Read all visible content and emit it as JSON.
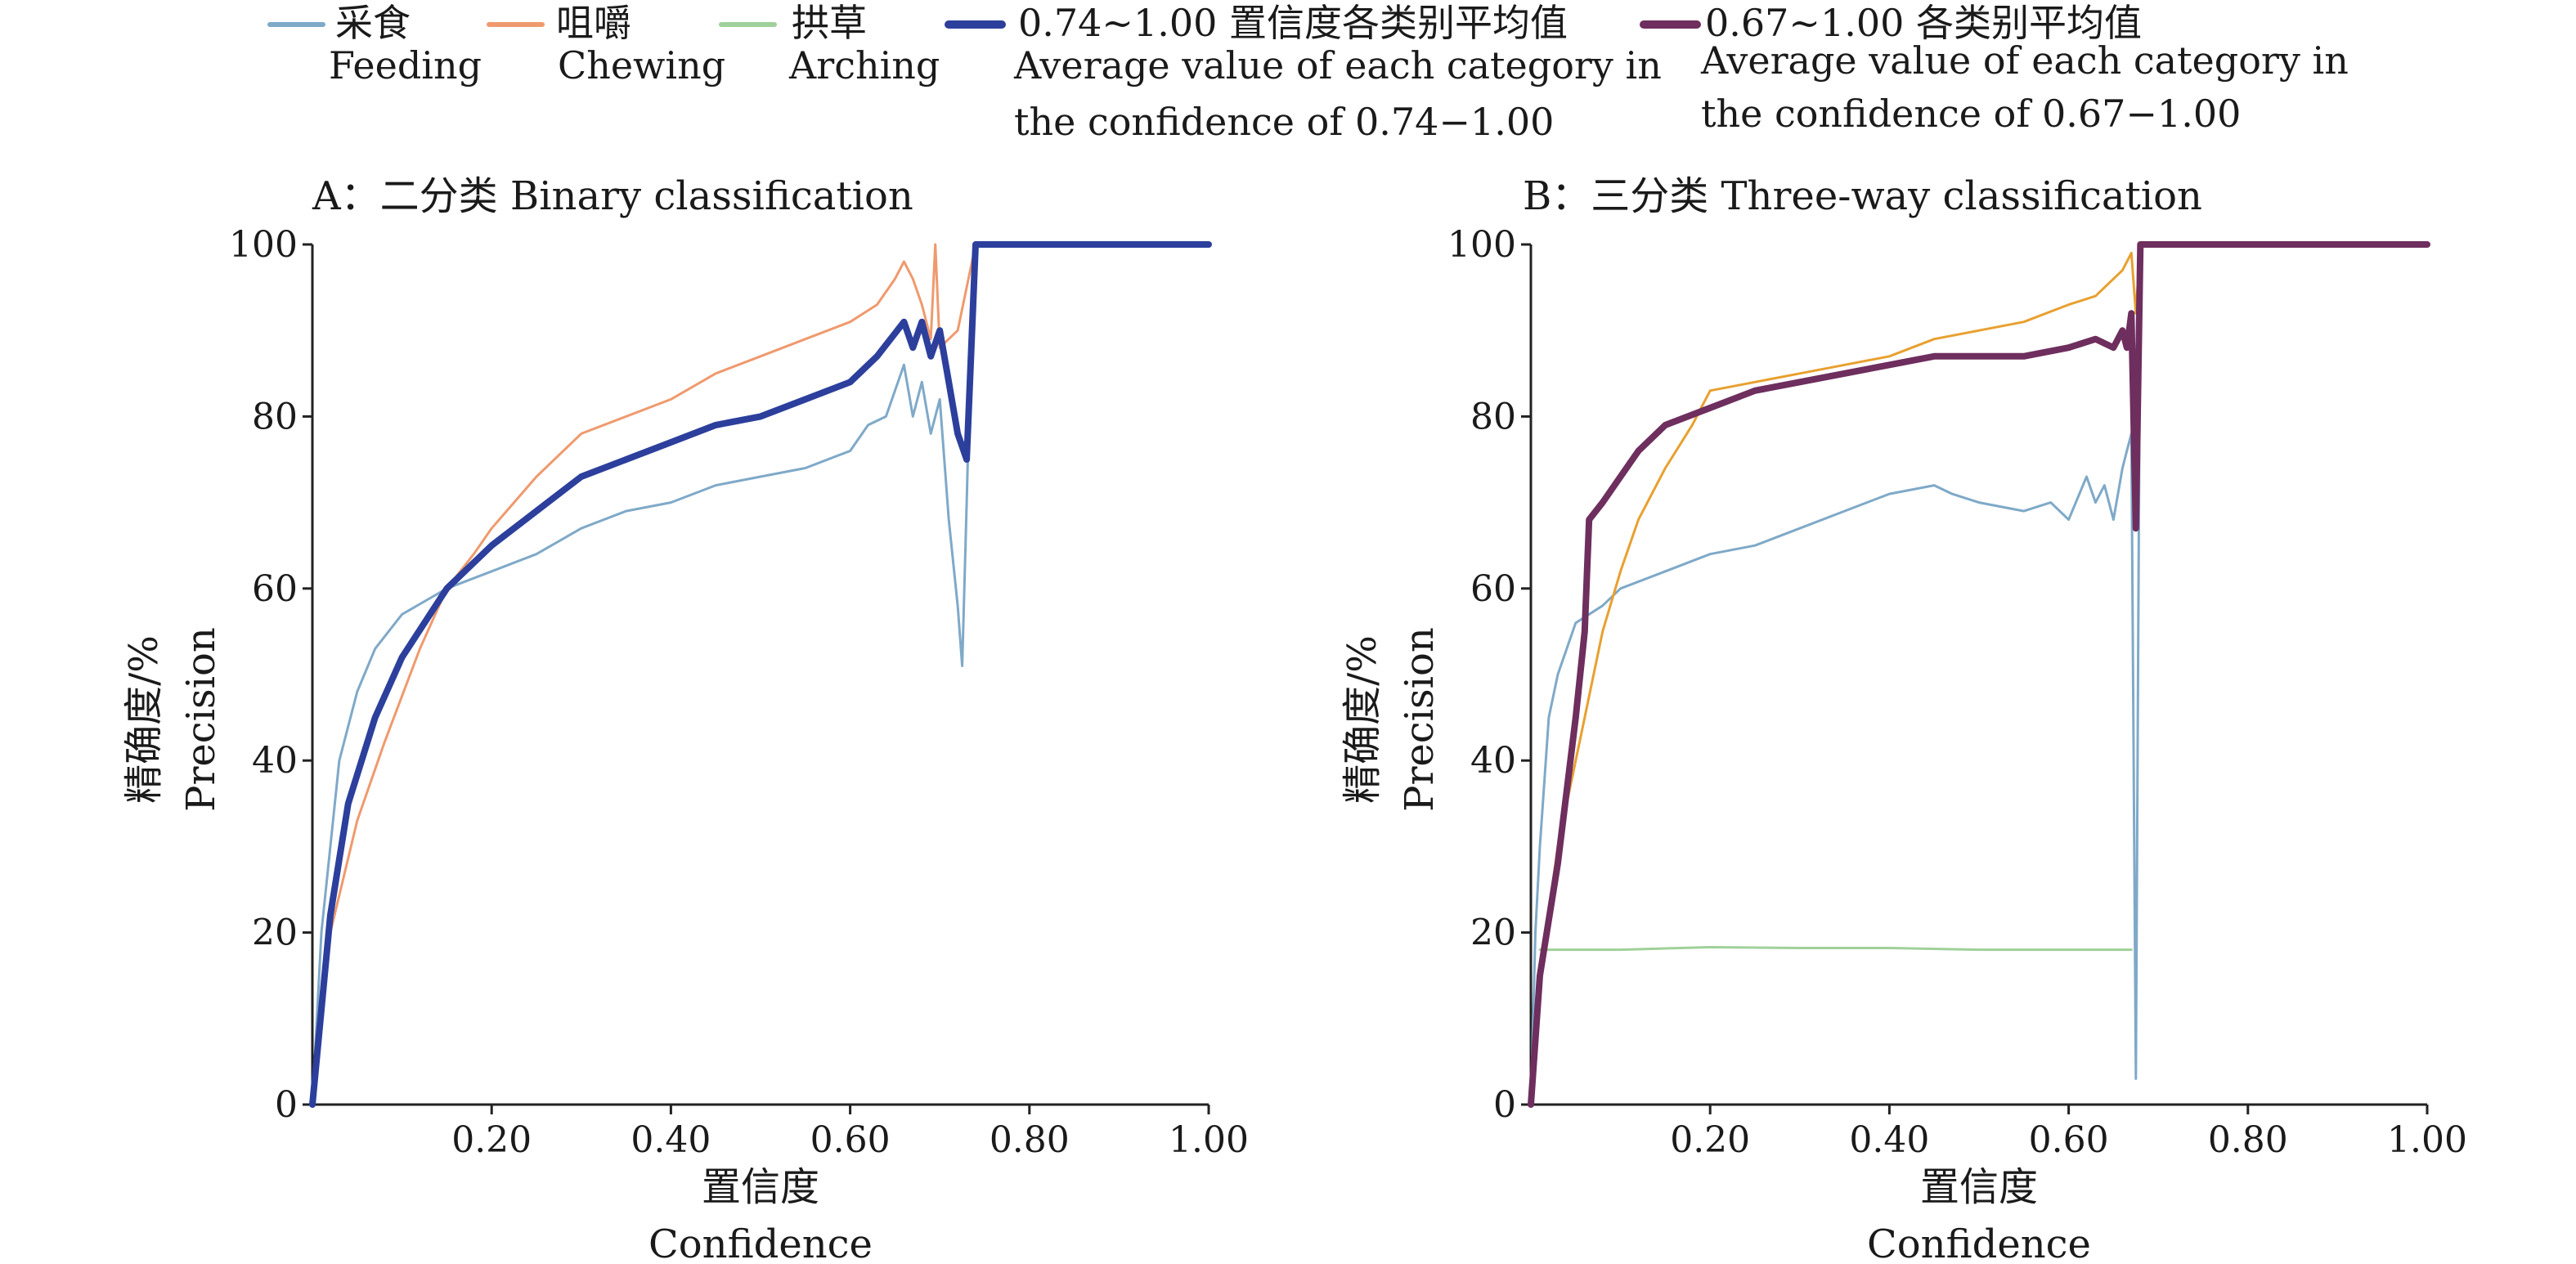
{
  "legend": [
    {
      "key": "feeding",
      "cn": "采食",
      "en": [
        "Feeding"
      ],
      "color": "#7fa9c8",
      "width": "thin"
    },
    {
      "key": "chewing",
      "cn": "咀嚼",
      "en": [
        "Chewing"
      ],
      "color": "#ef9a6e",
      "width": "thin"
    },
    {
      "key": "arching",
      "cn": "拱草",
      "en": [
        "Arching"
      ],
      "color": "#9fd19a",
      "width": "thin"
    },
    {
      "key": "avg_a",
      "cn": "0.74~1.00 置信度各类别平均值",
      "en": [
        "Average value of each category in",
        "the confidence of 0.74−1.00"
      ],
      "color": "#2c3f9c",
      "width": "thick"
    },
    {
      "key": "avg_b",
      "cn": "0.67~1.00 各类别平均值",
      "en": [
        "Average value of each category in",
        "the confidence of 0.67−1.00"
      ],
      "color": "#6e2e5e",
      "width": "thick"
    }
  ],
  "chart_data": [
    {
      "type": "line",
      "title": "A：二分类 Binary classification",
      "xlabel_cn": "置信度",
      "xlabel_en": "Confidence",
      "ylabel_cn": "精确度/%",
      "ylabel_en": "Precision",
      "xlim": [
        0,
        1.0
      ],
      "ylim": [
        0,
        100
      ],
      "xticks": [
        "0.20",
        "0.40",
        "0.60",
        "0.80",
        "1.00"
      ],
      "yticks": [
        "0",
        "20",
        "40",
        "60",
        "80",
        "100"
      ],
      "grid": false,
      "series": [
        {
          "name": "采食 Feeding",
          "color": "#7fa9c8",
          "width": 3,
          "x": [
            0,
            0.01,
            0.03,
            0.05,
            0.07,
            0.1,
            0.15,
            0.2,
            0.25,
            0.3,
            0.35,
            0.4,
            0.45,
            0.5,
            0.55,
            0.6,
            0.62,
            0.64,
            0.66,
            0.67,
            0.68,
            0.69,
            0.7,
            0.71,
            0.72,
            0.725,
            0.73,
            0.735,
            0.74,
            1.0
          ],
          "y": [
            0,
            20,
            40,
            48,
            53,
            57,
            60,
            62,
            64,
            67,
            69,
            70,
            72,
            73,
            74,
            76,
            79,
            80,
            86,
            80,
            84,
            78,
            82,
            68,
            58,
            51,
            70,
            90,
            100,
            100
          ]
        },
        {
          "name": "咀嚼 Chewing",
          "color": "#ef9a6e",
          "width": 3,
          "x": [
            0,
            0.02,
            0.05,
            0.08,
            0.12,
            0.15,
            0.18,
            0.2,
            0.25,
            0.3,
            0.35,
            0.4,
            0.45,
            0.5,
            0.55,
            0.6,
            0.63,
            0.65,
            0.66,
            0.67,
            0.68,
            0.69,
            0.695,
            0.7,
            0.72,
            0.74,
            1.0
          ],
          "y": [
            0,
            20,
            33,
            42,
            53,
            60,
            64,
            67,
            73,
            78,
            80,
            82,
            85,
            87,
            89,
            91,
            93,
            96,
            98,
            96,
            93,
            89,
            100,
            88,
            90,
            100,
            100
          ]
        },
        {
          "name": "0.74~1.00 置信度各类别平均值",
          "color": "#2c3f9c",
          "width": 8,
          "x": [
            0,
            0.02,
            0.04,
            0.07,
            0.1,
            0.15,
            0.2,
            0.25,
            0.3,
            0.35,
            0.4,
            0.45,
            0.5,
            0.55,
            0.6,
            0.63,
            0.66,
            0.67,
            0.68,
            0.69,
            0.7,
            0.71,
            0.72,
            0.73,
            0.74,
            1.0
          ],
          "y": [
            0,
            22,
            35,
            45,
            52,
            60,
            65,
            69,
            73,
            75,
            77,
            79,
            80,
            82,
            84,
            87,
            91,
            88,
            91,
            87,
            90,
            84,
            78,
            75,
            100,
            100
          ]
        }
      ]
    },
    {
      "type": "line",
      "title": "B：三分类 Three-way classification",
      "xlabel_cn": "置信度",
      "xlabel_en": "Confidence",
      "ylabel_cn": "精确度/%",
      "ylabel_en": "Precision",
      "xlim": [
        0,
        1.0
      ],
      "ylim": [
        0,
        100
      ],
      "xticks": [
        "0.20",
        "0.40",
        "0.60",
        "0.80",
        "1.00"
      ],
      "yticks": [
        "0",
        "20",
        "40",
        "60",
        "80",
        "100"
      ],
      "grid": false,
      "series": [
        {
          "name": "采食 Feeding",
          "color": "#7fa9c8",
          "width": 3,
          "x": [
            0,
            0.005,
            0.01,
            0.02,
            0.03,
            0.05,
            0.08,
            0.1,
            0.15,
            0.2,
            0.25,
            0.3,
            0.35,
            0.4,
            0.45,
            0.47,
            0.5,
            0.55,
            0.58,
            0.6,
            0.62,
            0.63,
            0.64,
            0.65,
            0.66,
            0.665,
            0.67,
            0.675,
            0.68,
            1.0
          ],
          "y": [
            0,
            20,
            30,
            45,
            50,
            56,
            58,
            60,
            62,
            64,
            65,
            67,
            69,
            71,
            72,
            71,
            70,
            69,
            70,
            68,
            73,
            70,
            72,
            68,
            74,
            76,
            78,
            3,
            100,
            100
          ]
        },
        {
          "name": "咀嚼 Chewing",
          "color": "#e8a030",
          "width": 3,
          "x": [
            0,
            0.01,
            0.03,
            0.06,
            0.08,
            0.1,
            0.12,
            0.15,
            0.18,
            0.2,
            0.25,
            0.3,
            0.35,
            0.4,
            0.45,
            0.5,
            0.55,
            0.6,
            0.63,
            0.65,
            0.66,
            0.67,
            0.675,
            0.68,
            1.0
          ],
          "y": [
            0,
            15,
            30,
            45,
            55,
            62,
            68,
            74,
            79,
            83,
            84,
            85,
            86,
            87,
            89,
            90,
            91,
            93,
            94,
            96,
            97,
            99,
            92,
            100,
            100
          ]
        },
        {
          "name": "拱草 Arching",
          "color": "#9fd19a",
          "width": 3,
          "x": [
            0.01,
            0.1,
            0.2,
            0.3,
            0.4,
            0.5,
            0.6,
            0.67
          ],
          "y": [
            18,
            18,
            18.3,
            18.2,
            18.2,
            18,
            18,
            18
          ]
        },
        {
          "name": "0.67~1.00 各类别平均值",
          "color": "#6e2e5e",
          "width": 8,
          "x": [
            0,
            0.01,
            0.03,
            0.05,
            0.06,
            0.065,
            0.08,
            0.1,
            0.12,
            0.15,
            0.2,
            0.25,
            0.3,
            0.35,
            0.4,
            0.45,
            0.5,
            0.55,
            0.6,
            0.63,
            0.65,
            0.66,
            0.665,
            0.67,
            0.675,
            0.68,
            1.0
          ],
          "y": [
            0,
            15,
            28,
            45,
            55,
            68,
            70,
            73,
            76,
            79,
            81,
            83,
            84,
            85,
            86,
            87,
            87,
            87,
            88,
            89,
            88,
            90,
            88,
            92,
            67,
            100,
            100
          ]
        }
      ]
    }
  ]
}
